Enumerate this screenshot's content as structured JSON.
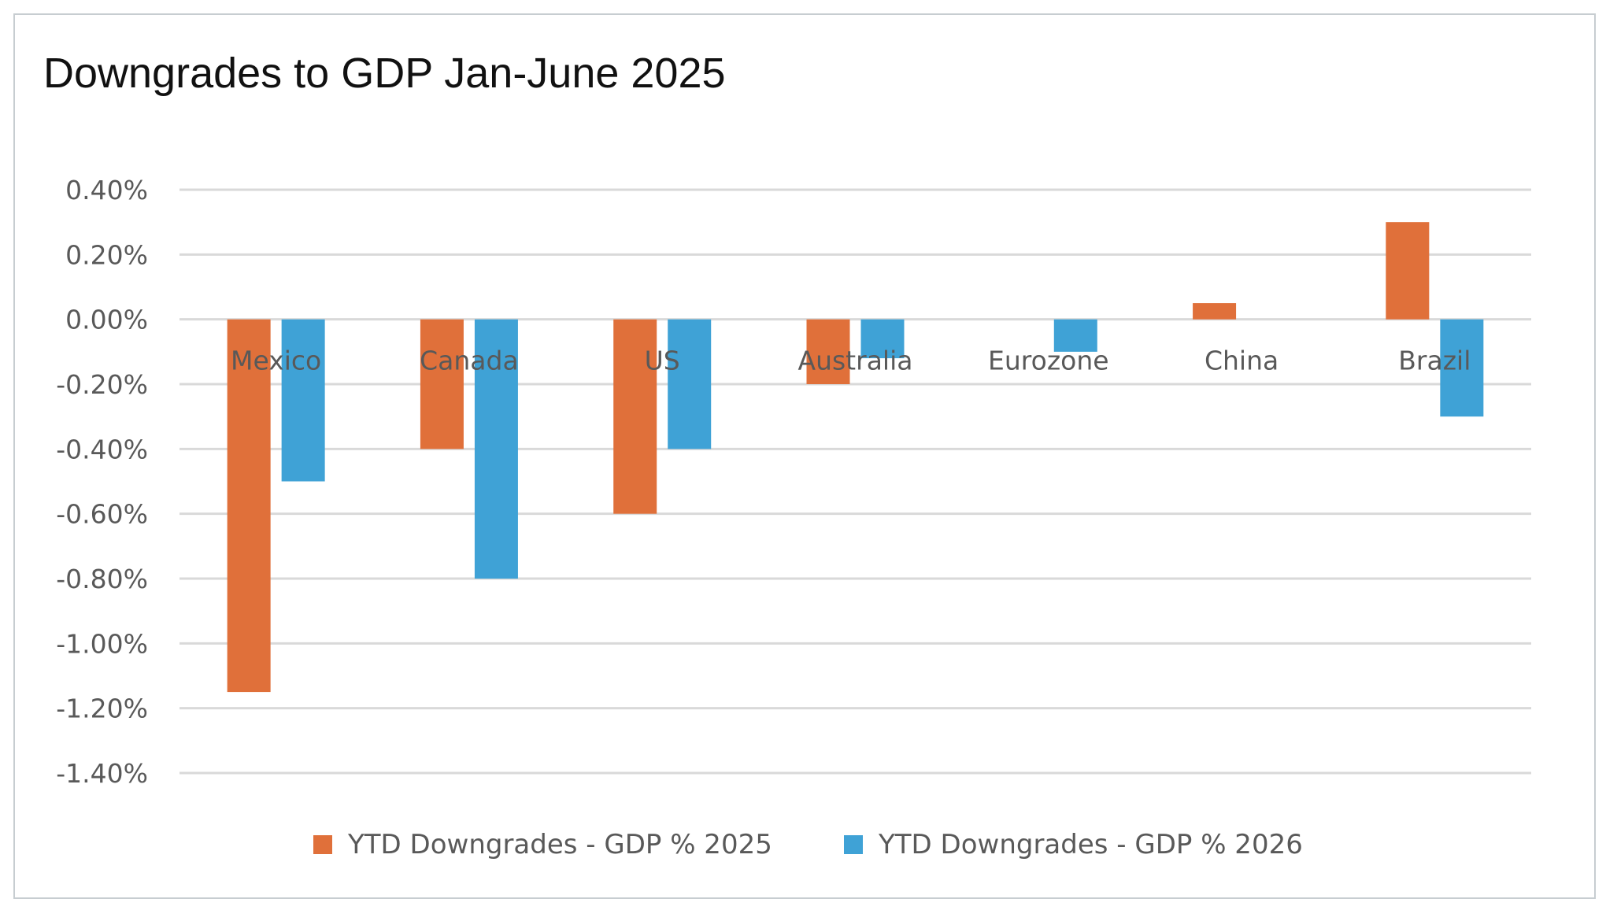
{
  "chart_data": {
    "type": "bar",
    "title": "Downgrades to GDP Jan-June 2025",
    "categories": [
      "Mexico",
      "Canada",
      "US",
      "Australia",
      "Eurozone",
      "China",
      "Brazil"
    ],
    "series": [
      {
        "name": "YTD Downgrades - GDP %  2025",
        "color": "#e0703a",
        "values": [
          -1.15,
          -0.4,
          -0.6,
          -0.2,
          0.0,
          0.05,
          0.3
        ]
      },
      {
        "name": "YTD Downgrades - GDP %  2026",
        "color": "#3fa2d6",
        "values": [
          -0.5,
          -0.8,
          -0.4,
          -0.12,
          -0.1,
          0.0,
          -0.3
        ]
      }
    ],
    "ylim": [
      -1.4,
      0.4
    ],
    "yticks": [
      0.4,
      0.2,
      0.0,
      -0.2,
      -0.4,
      -0.6,
      -0.8,
      -1.0,
      -1.2,
      -1.4
    ],
    "ytick_labels": [
      "0.40%",
      "0.20%",
      "0.00%",
      "-0.20%",
      "-0.40%",
      "-0.60%",
      "-0.80%",
      "-1.00%",
      "-1.20%",
      "-1.40%"
    ],
    "xlabel": "",
    "ylabel": "",
    "grid": true,
    "legend_position": "bottom"
  },
  "colors": {
    "grid": "#d9d9d9",
    "axis_text": "#595959",
    "border": "#c7cdd1"
  }
}
